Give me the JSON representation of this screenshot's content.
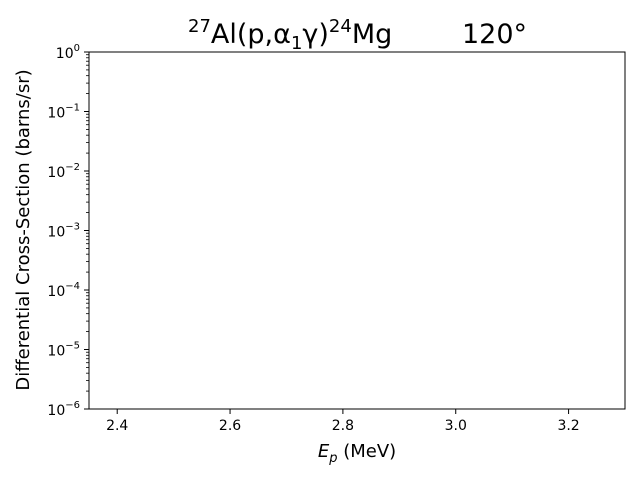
{
  "chart_data": {
    "type": "scatter",
    "title": {
      "reaction_mass_27": "27",
      "reaction_target": "Al(p,",
      "reaction_alpha": "α",
      "reaction_alpha_index": "1",
      "reaction_gamma": "γ)",
      "reaction_mass_24": "24",
      "reaction_product": "Mg",
      "angle": "120°"
    },
    "xlabel": {
      "var": "E",
      "sub": "p",
      "unit": " (MeV)"
    },
    "ylabel": "Differential Cross-Section (barns/sr)",
    "xlim": [
      2.35,
      3.3
    ],
    "ylim": [
      1e-06,
      1
    ],
    "yscale": "log",
    "xticks": [
      {
        "value": 2.4,
        "label": "2.4"
      },
      {
        "value": 2.6,
        "label": "2.6"
      },
      {
        "value": 2.8,
        "label": "2.8"
      },
      {
        "value": 3.0,
        "label": "3.0"
      },
      {
        "value": 3.2,
        "label": "3.2"
      }
    ],
    "yticks": [
      {
        "exp": -6,
        "base": "10",
        "sup": "−6"
      },
      {
        "exp": -5,
        "base": "10",
        "sup": "−5"
      },
      {
        "exp": -4,
        "base": "10",
        "sup": "−4"
      },
      {
        "exp": -3,
        "base": "10",
        "sup": "−3"
      },
      {
        "exp": -2,
        "base": "10",
        "sup": "−2"
      },
      {
        "exp": -1,
        "base": "10",
        "sup": "−1"
      },
      {
        "exp": 0,
        "base": "10",
        "sup": "0"
      }
    ],
    "grid": false,
    "series": []
  }
}
